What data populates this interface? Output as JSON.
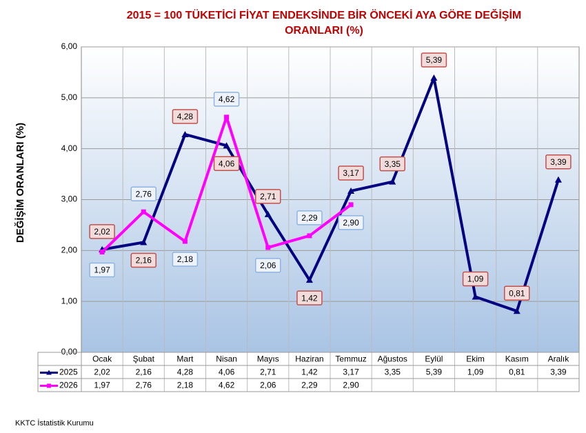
{
  "chart_data": {
    "type": "line",
    "title": "2015 = 100 TÜKETİCİ FİYAT ENDEKSİNDE BİR ÖNCEKİ AYA GÖRE DEĞİŞİM ORANLARI (%)",
    "y_label": "DEĞİŞİM ORANLARI (%)",
    "source": "KKTC İstatistik Kurumu",
    "categories": [
      "Ocak",
      "Şubat",
      "Mart",
      "Nisan",
      "Mayıs",
      "Haziran",
      "Temmuz",
      "Ağustos",
      "Eylül",
      "Ekim",
      "Kasım",
      "Aralık"
    ],
    "series": [
      {
        "name": "2025",
        "color": "#000080",
        "marker": "triangle",
        "values": [
          2.02,
          2.16,
          4.28,
          4.06,
          2.71,
          1.42,
          3.17,
          3.35,
          5.39,
          1.09,
          0.81,
          3.39
        ],
        "value_labels": [
          "2,02",
          "2,16",
          "4,28",
          "4,06",
          "2,71",
          "1,42",
          "3,17",
          "3,35",
          "5,39",
          "1,09",
          "0,81",
          "3,39"
        ]
      },
      {
        "name": "2026",
        "color": "#ff00ff",
        "marker": "square",
        "values": [
          1.97,
          2.76,
          2.18,
          4.62,
          2.06,
          2.29,
          2.9,
          null,
          null,
          null,
          null,
          null
        ],
        "value_labels": [
          "1,97",
          "2,76",
          "2,18",
          "4,62",
          "2,06",
          "2,29",
          "2,90",
          null,
          null,
          null,
          null,
          null
        ]
      }
    ],
    "ylim": [
      0,
      6
    ],
    "yticks": [
      {
        "value": 0,
        "label": "0,00"
      },
      {
        "value": 1,
        "label": "1,00"
      },
      {
        "value": 2,
        "label": "2,00"
      },
      {
        "value": 3,
        "label": "3,00"
      },
      {
        "value": 4,
        "label": "4,00"
      },
      {
        "value": 5,
        "label": "5,00"
      },
      {
        "value": 6,
        "label": "6,00"
      }
    ],
    "grid": true
  }
}
